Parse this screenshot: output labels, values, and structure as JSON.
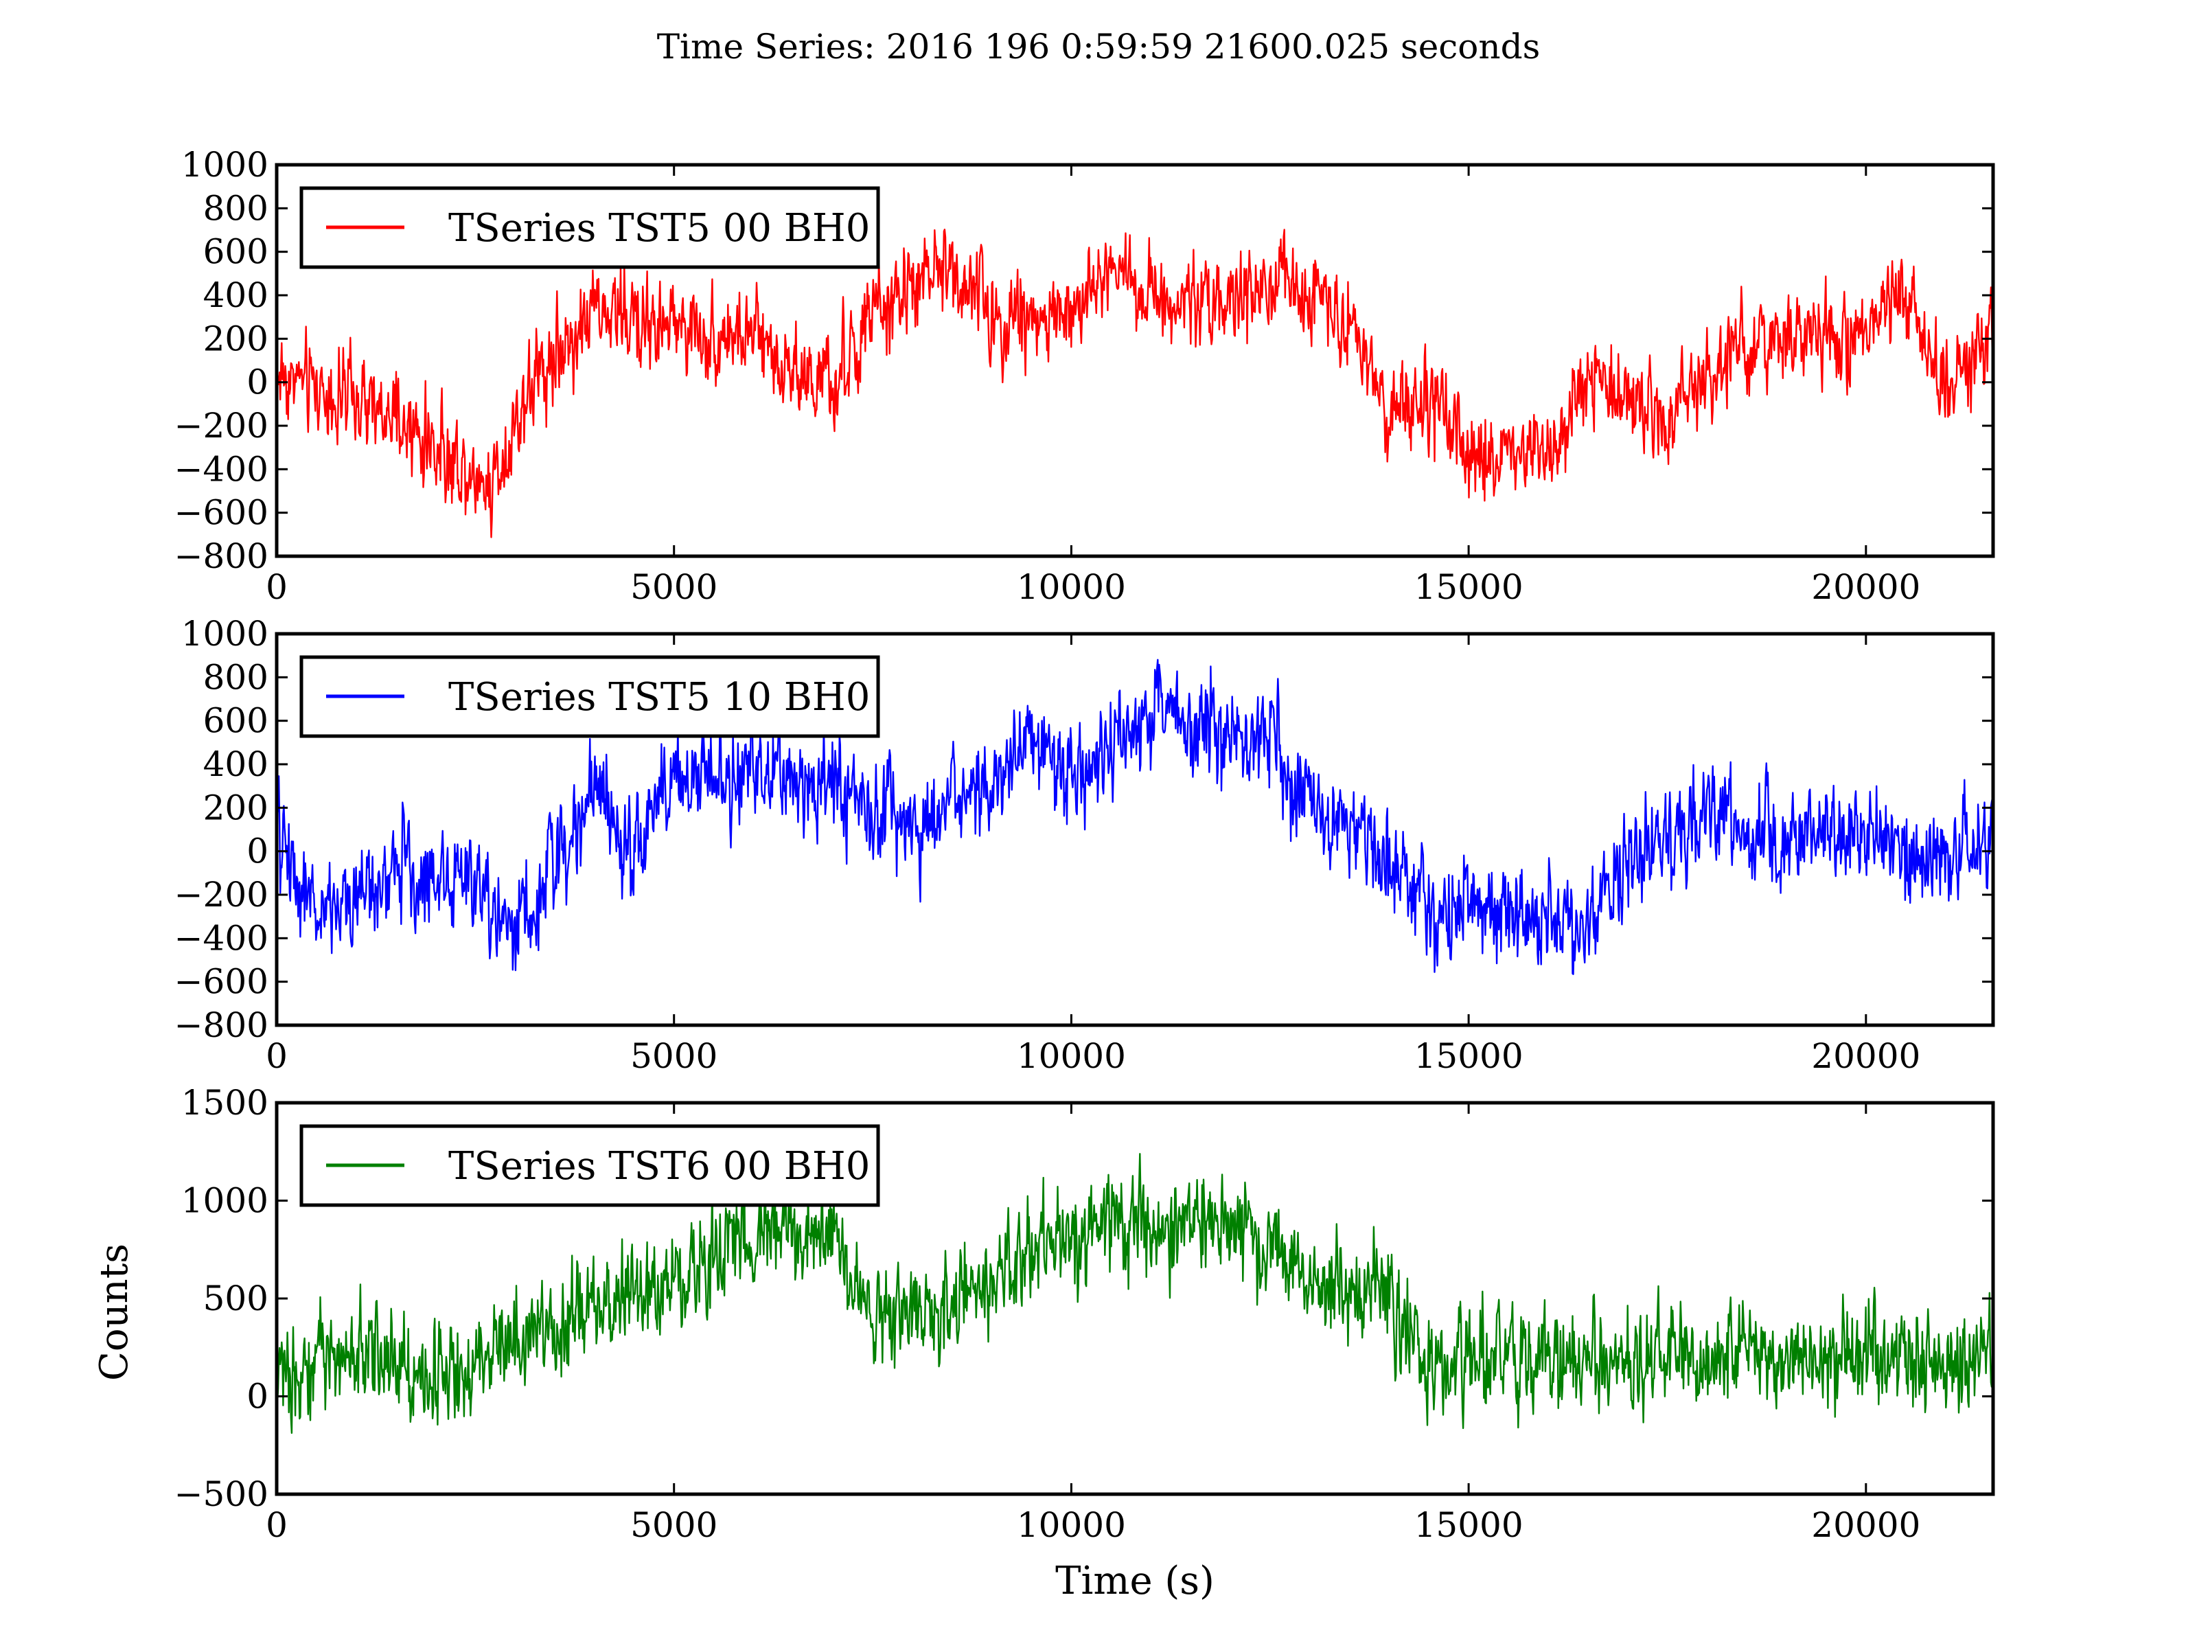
{
  "figure_title": "Time Series: 2016 196 0:59:59 21600.025 seconds",
  "chart_data": [
    {
      "type": "line",
      "legend": "TSeries TST5 00 BH0",
      "legend_position": "upper-left",
      "color": "#ff0000",
      "xlim": [
        0,
        21600
      ],
      "ylim": [
        -800,
        1000
      ],
      "xticks": [
        0,
        5000,
        10000,
        15000,
        20000
      ],
      "xtick_labels": [
        "0",
        "5000",
        "10000",
        "15000",
        "20000"
      ],
      "yticks": [
        -800,
        -600,
        -400,
        -200,
        0,
        200,
        400,
        600,
        800,
        1000
      ],
      "ytick_labels": [
        "−800",
        "−600",
        "−400",
        "−200",
        "0",
        "200",
        "400",
        "600",
        "800",
        "1000"
      ],
      "xlabel": "",
      "ylabel": "",
      "noise": 130,
      "trend": [
        [
          0,
          50
        ],
        [
          1000,
          -100
        ],
        [
          2000,
          -300
        ],
        [
          2700,
          -470
        ],
        [
          3200,
          0
        ],
        [
          4000,
          330
        ],
        [
          5000,
          250
        ],
        [
          6000,
          200
        ],
        [
          7000,
          -50
        ],
        [
          7500,
          300
        ],
        [
          8500,
          550
        ],
        [
          9000,
          300
        ],
        [
          10000,
          300
        ],
        [
          10500,
          550
        ],
        [
          11000,
          400
        ],
        [
          12000,
          380
        ],
        [
          13000,
          450
        ],
        [
          13500,
          300
        ],
        [
          14000,
          -150
        ],
        [
          14500,
          -100
        ],
        [
          15000,
          -350
        ],
        [
          16000,
          -300
        ],
        [
          16500,
          0
        ],
        [
          17000,
          -50
        ],
        [
          17500,
          -150
        ],
        [
          18000,
          50
        ],
        [
          19000,
          200
        ],
        [
          20000,
          200
        ],
        [
          20500,
          400
        ],
        [
          21000,
          0
        ],
        [
          21600,
          200
        ]
      ]
    },
    {
      "type": "line",
      "legend": "TSeries TST5 10 BH0",
      "legend_position": "upper-left",
      "color": "#0000ff",
      "xlim": [
        0,
        21600
      ],
      "ylim": [
        -800,
        1000
      ],
      "xticks": [
        0,
        5000,
        10000,
        15000,
        20000
      ],
      "xtick_labels": [
        "0",
        "5000",
        "10000",
        "15000",
        "20000"
      ],
      "yticks": [
        -800,
        -600,
        -400,
        -200,
        0,
        200,
        400,
        600,
        800,
        1000
      ],
      "ytick_labels": [
        "−800",
        "−600",
        "−400",
        "−200",
        "0",
        "200",
        "400",
        "600",
        "800",
        "1000"
      ],
      "xlabel": "",
      "ylabel": "",
      "noise": 140,
      "trend": [
        [
          0,
          100
        ],
        [
          500,
          -300
        ],
        [
          1500,
          -100
        ],
        [
          2500,
          -150
        ],
        [
          3000,
          -350
        ],
        [
          3500,
          -50
        ],
        [
          4000,
          300
        ],
        [
          4500,
          0
        ],
        [
          5000,
          350
        ],
        [
          6000,
          350
        ],
        [
          7000,
          300
        ],
        [
          8000,
          100
        ],
        [
          9000,
          300
        ],
        [
          9500,
          500
        ],
        [
          10000,
          300
        ],
        [
          11000,
          650
        ],
        [
          12000,
          550
        ],
        [
          12500,
          500
        ],
        [
          13000,
          200
        ],
        [
          14000,
          0
        ],
        [
          14500,
          -300
        ],
        [
          15000,
          -250
        ],
        [
          16000,
          -300
        ],
        [
          16500,
          -350
        ],
        [
          17000,
          -50
        ],
        [
          18000,
          200
        ],
        [
          19000,
          50
        ],
        [
          20000,
          100
        ],
        [
          21000,
          -50
        ],
        [
          21600,
          100
        ]
      ]
    },
    {
      "type": "line",
      "legend": "TSeries TST6 00 BH0",
      "legend_position": "upper-left",
      "color": "#008000",
      "xlim": [
        0,
        21600
      ],
      "ylim": [
        -500,
        1500
      ],
      "xticks": [
        0,
        5000,
        10000,
        15000,
        20000
      ],
      "xtick_labels": [
        "0",
        "5000",
        "10000",
        "15000",
        "20000"
      ],
      "yticks": [
        -500,
        0,
        500,
        1000,
        1500
      ],
      "ytick_labels": [
        "−500",
        "0",
        "500",
        "1000",
        "1500"
      ],
      "xlabel": "Time (s)",
      "ylabel": "Counts",
      "noise": 160,
      "trend": [
        [
          0,
          100
        ],
        [
          1000,
          250
        ],
        [
          2000,
          100
        ],
        [
          3000,
          300
        ],
        [
          4000,
          450
        ],
        [
          5000,
          600
        ],
        [
          6000,
          850
        ],
        [
          7000,
          800
        ],
        [
          7500,
          400
        ],
        [
          8500,
          450
        ],
        [
          9500,
          700
        ],
        [
          10300,
          900
        ],
        [
          11000,
          850
        ],
        [
          12000,
          900
        ],
        [
          13000,
          600
        ],
        [
          14000,
          500
        ],
        [
          14500,
          150
        ],
        [
          15500,
          200
        ],
        [
          16500,
          150
        ],
        [
          17000,
          200
        ],
        [
          18000,
          200
        ],
        [
          19000,
          250
        ],
        [
          20000,
          200
        ],
        [
          21000,
          150
        ],
        [
          21600,
          250
        ]
      ]
    }
  ]
}
